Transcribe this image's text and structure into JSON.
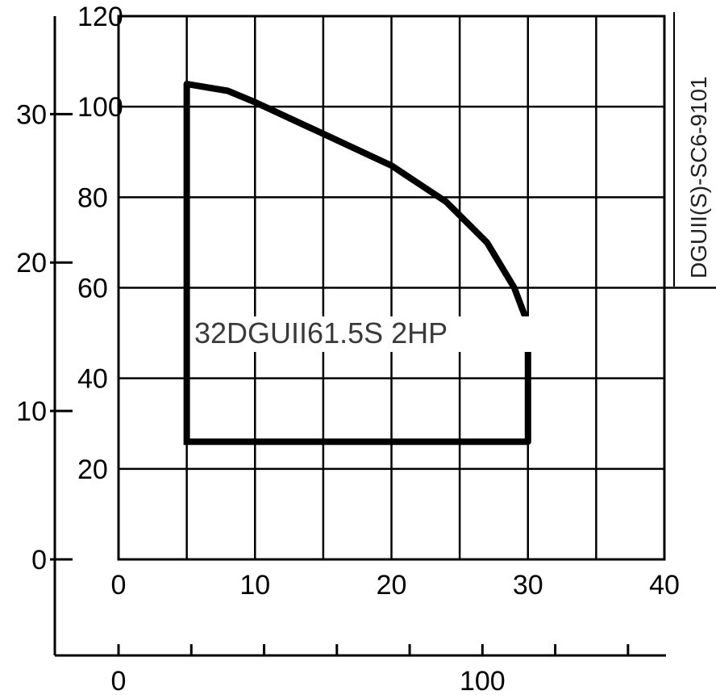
{
  "chart_data": {
    "type": "line",
    "title": "",
    "model_label": "32DGUII61.5S 2HP",
    "doc_code": "DGUII(S)-SC6-9101",
    "grid": true,
    "axes": {
      "primary_x": {
        "range": [
          0,
          40
        ],
        "ticks": [
          0,
          10,
          20,
          30,
          40
        ]
      },
      "secondary_x": {
        "range": [
          0,
          150
        ],
        "ticks": [
          0,
          100
        ],
        "minor_ticks": [
          0,
          20,
          40,
          60,
          80,
          100,
          120,
          140
        ]
      },
      "primary_y": {
        "range": [
          0,
          120
        ],
        "ticks": [
          0,
          20,
          40,
          60,
          80,
          100,
          120
        ]
      },
      "secondary_y": {
        "range": [
          0,
          36.6
        ],
        "ticks": [
          0,
          10,
          20,
          30
        ]
      }
    },
    "series": [
      {
        "x": [
          5,
          5,
          8,
          10,
          15,
          20,
          24,
          27,
          29,
          30,
          30,
          5
        ],
        "y": [
          105,
          26,
          26,
          26,
          26,
          26,
          26,
          26,
          26,
          26,
          49,
          105
        ],
        "outline": [
          [
            5,
            26
          ],
          [
            5,
            105
          ],
          [
            8,
            103.5
          ],
          [
            10,
            101
          ],
          [
            15,
            94
          ],
          [
            20,
            87
          ],
          [
            24,
            79
          ],
          [
            27,
            70
          ],
          [
            29,
            60
          ],
          [
            30,
            52
          ],
          [
            30,
            26
          ],
          [
            5,
            26
          ]
        ]
      }
    ]
  }
}
